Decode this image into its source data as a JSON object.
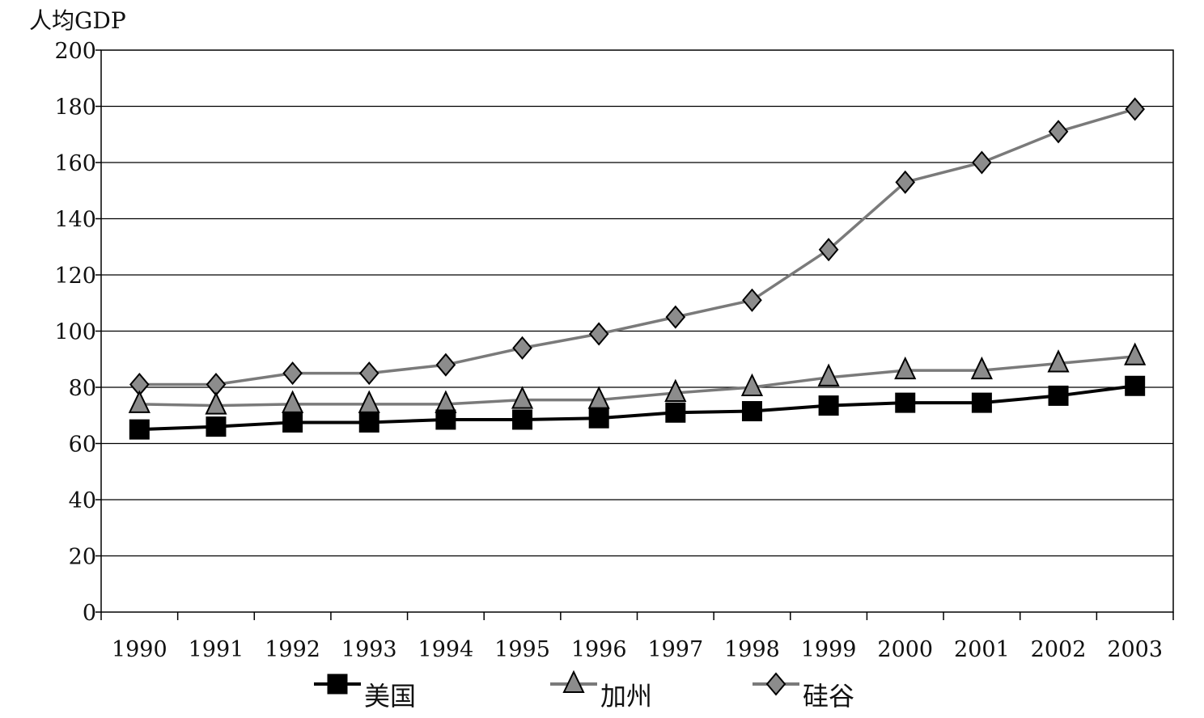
{
  "chart_data": {
    "type": "line",
    "title": "",
    "ylabel": "人均GDP",
    "xlabel": "",
    "categories": [
      "1990",
      "1991",
      "1992",
      "1993",
      "1994",
      "1995",
      "1996",
      "1997",
      "1998",
      "1999",
      "2000",
      "2001",
      "2002",
      "2003"
    ],
    "ylim": [
      0,
      200
    ],
    "yticks": [
      "0",
      "20",
      "40",
      "60",
      "80",
      "100",
      "120",
      "140",
      "160",
      "180",
      "200"
    ],
    "grid": true,
    "legend_position": "bottom",
    "series": [
      {
        "name": "美国",
        "marker": "square",
        "color": "#000000",
        "values": [
          65,
          66,
          67.5,
          67.5,
          68.5,
          68.5,
          69,
          71,
          71.5,
          73.5,
          74.5,
          74.5,
          77,
          80.5
        ]
      },
      {
        "name": "加州",
        "marker": "triangle",
        "color": "#7a7a7a",
        "values": [
          74,
          73.5,
          74,
          74,
          74,
          75.5,
          75.5,
          78,
          80,
          83.5,
          86,
          86,
          88.5,
          91
        ]
      },
      {
        "name": "硅谷",
        "marker": "diamond",
        "color": "#7a7a7a",
        "values": [
          81,
          81,
          85,
          85,
          88,
          94,
          99,
          105,
          111,
          129,
          153,
          160,
          171,
          179
        ]
      }
    ]
  }
}
